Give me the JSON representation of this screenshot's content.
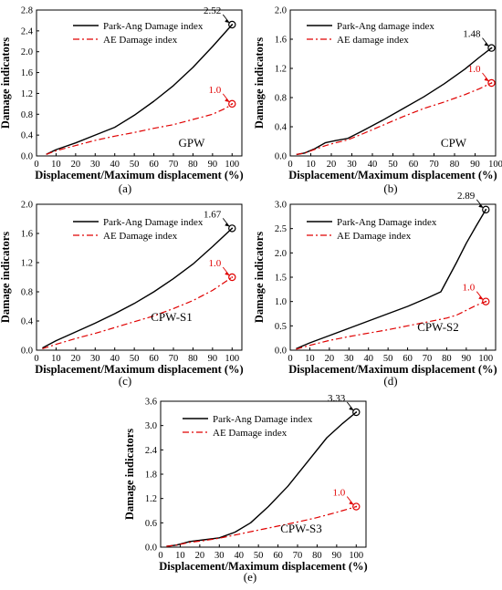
{
  "figure": {
    "colors": {
      "park_ang": "#000000",
      "ae": "#e00000",
      "axis": "#000000"
    }
  },
  "chart_data": [
    {
      "type": "line",
      "sublabel": "(a)",
      "panel_name": "GPW",
      "xlabel": "Displacement/Maximum displacement (%)",
      "ylabel": "Damage indicators",
      "xlim": [
        0,
        105
      ],
      "ylim": [
        0,
        2.8
      ],
      "xticks": [
        0,
        10,
        20,
        30,
        40,
        50,
        60,
        70,
        80,
        90,
        100
      ],
      "yticks": [
        0.0,
        0.4,
        0.8,
        1.2,
        1.6,
        2.0,
        2.4,
        2.8
      ],
      "ytick_decimals": 1,
      "grid": false,
      "legend": "top-left",
      "series": [
        {
          "name": "Park-Ang Damage index",
          "style": "solid",
          "color": "#000000",
          "x": [
            5,
            10,
            20,
            30,
            40,
            50,
            60,
            70,
            80,
            90,
            100
          ],
          "y": [
            0.03,
            0.12,
            0.25,
            0.4,
            0.55,
            0.78,
            1.05,
            1.35,
            1.7,
            2.1,
            2.52
          ]
        },
        {
          "name": "AE Damage index",
          "style": "dashdot",
          "color": "#e00000",
          "x": [
            5,
            10,
            20,
            30,
            40,
            50,
            60,
            70,
            80,
            90,
            97,
            100
          ],
          "y": [
            0.03,
            0.1,
            0.2,
            0.3,
            0.38,
            0.45,
            0.53,
            0.6,
            0.7,
            0.8,
            0.92,
            1.0
          ]
        }
      ],
      "annotations": [
        {
          "text": "2.52",
          "x": 100,
          "y": 2.52,
          "color": "#000000"
        },
        {
          "text": "1.0",
          "x": 100,
          "y": 1.0,
          "color": "#e00000"
        }
      ]
    },
    {
      "type": "line",
      "sublabel": "(b)",
      "panel_name": "CPW",
      "xlabel": "Displacement/Maximum displacement (%)",
      "ylabel": "Damage indicators",
      "xlim": [
        0,
        100
      ],
      "ylim": [
        0,
        2.0
      ],
      "xticks": [
        0,
        10,
        20,
        30,
        40,
        50,
        60,
        70,
        80,
        90,
        100
      ],
      "yticks": [
        0.0,
        0.4,
        0.8,
        1.2,
        1.6,
        2.0
      ],
      "ytick_decimals": 1,
      "grid": false,
      "legend": "top-left",
      "series": [
        {
          "name": "Park-Ang damage index",
          "style": "solid",
          "color": "#000000",
          "x": [
            3,
            7,
            12,
            17,
            22,
            28,
            35,
            45,
            55,
            65,
            75,
            85,
            92,
            98
          ],
          "y": [
            0.02,
            0.04,
            0.1,
            0.18,
            0.21,
            0.24,
            0.34,
            0.49,
            0.65,
            0.81,
            0.99,
            1.19,
            1.35,
            1.48
          ]
        },
        {
          "name": "AE damage index",
          "style": "dashdot",
          "color": "#e00000",
          "x": [
            3,
            7,
            12,
            17,
            22,
            28,
            35,
            45,
            55,
            65,
            75,
            85,
            92,
            98
          ],
          "y": [
            0.02,
            0.04,
            0.09,
            0.14,
            0.18,
            0.22,
            0.3,
            0.42,
            0.54,
            0.65,
            0.74,
            0.84,
            0.92,
            1.0
          ]
        }
      ],
      "annotations": [
        {
          "text": "1.48",
          "x": 98,
          "y": 1.48,
          "color": "#000000"
        },
        {
          "text": "1.0",
          "x": 98,
          "y": 1.0,
          "color": "#e00000"
        }
      ]
    },
    {
      "type": "line",
      "sublabel": "(c)",
      "panel_name": "CPW-S1",
      "xlabel": "Displacement/Maximum displacement (%)",
      "ylabel": "Damage indicators",
      "xlim": [
        0,
        105
      ],
      "ylim": [
        0,
        2.0
      ],
      "xticks": [
        0,
        10,
        20,
        30,
        40,
        50,
        60,
        70,
        80,
        90,
        100
      ],
      "yticks": [
        0.0,
        0.4,
        0.8,
        1.2,
        1.6,
        2.0
      ],
      "ytick_decimals": 1,
      "grid": false,
      "legend": "top-left",
      "series": [
        {
          "name": "Park-Ang Damage index",
          "style": "solid",
          "color": "#000000",
          "x": [
            3,
            10,
            20,
            30,
            40,
            50,
            60,
            70,
            80,
            90,
            100
          ],
          "y": [
            0.03,
            0.13,
            0.25,
            0.37,
            0.5,
            0.64,
            0.8,
            0.98,
            1.18,
            1.42,
            1.67
          ]
        },
        {
          "name": "AE Damage index",
          "style": "dashdot",
          "color": "#e00000",
          "x": [
            3,
            10,
            20,
            30,
            40,
            50,
            60,
            70,
            80,
            90,
            100
          ],
          "y": [
            0.02,
            0.08,
            0.16,
            0.23,
            0.31,
            0.39,
            0.47,
            0.57,
            0.68,
            0.82,
            1.0
          ]
        }
      ],
      "annotations": [
        {
          "text": "1.67",
          "x": 100,
          "y": 1.67,
          "color": "#000000"
        },
        {
          "text": "1.0",
          "x": 100,
          "y": 1.0,
          "color": "#e00000"
        }
      ]
    },
    {
      "type": "line",
      "sublabel": "(d)",
      "panel_name": "CPW-S2",
      "xlabel": "Displacement/Maximum displacement (%)",
      "ylabel": "Damage indicators",
      "xlim": [
        0,
        105
      ],
      "ylim": [
        0,
        3.0
      ],
      "xticks": [
        0,
        10,
        20,
        30,
        40,
        50,
        60,
        70,
        80,
        90,
        100
      ],
      "yticks": [
        0.0,
        0.5,
        1.0,
        1.5,
        2.0,
        2.5,
        3.0
      ],
      "ytick_decimals": 1,
      "grid": false,
      "legend": "top-left",
      "series": [
        {
          "name": "Park-Ang Damage index",
          "style": "solid",
          "color": "#000000",
          "x": [
            3,
            10,
            20,
            30,
            40,
            50,
            60,
            70,
            77,
            85,
            90,
            95,
            100
          ],
          "y": [
            0.03,
            0.15,
            0.3,
            0.45,
            0.6,
            0.75,
            0.9,
            1.07,
            1.2,
            1.8,
            2.2,
            2.55,
            2.89
          ]
        },
        {
          "name": "AE Damage index",
          "style": "dashdot",
          "color": "#e00000",
          "x": [
            3,
            10,
            20,
            30,
            40,
            50,
            60,
            70,
            80,
            85,
            90,
            95,
            100
          ],
          "y": [
            0.02,
            0.1,
            0.2,
            0.28,
            0.35,
            0.42,
            0.5,
            0.58,
            0.66,
            0.72,
            0.82,
            0.92,
            1.0
          ]
        }
      ],
      "annotations": [
        {
          "text": "2.89",
          "x": 100,
          "y": 2.89,
          "color": "#000000"
        },
        {
          "text": "1.0",
          "x": 100,
          "y": 1.0,
          "color": "#e00000"
        }
      ]
    },
    {
      "type": "line",
      "sublabel": "(e)",
      "panel_name": "CPW-S3",
      "xlabel": "Displacement/Maximum displacement (%)",
      "ylabel": "Damage indicators",
      "xlim": [
        0,
        105
      ],
      "ylim": [
        0,
        3.6
      ],
      "xticks": [
        0,
        10,
        20,
        30,
        40,
        50,
        60,
        70,
        80,
        90,
        100
      ],
      "yticks": [
        0.0,
        0.6,
        1.2,
        1.8,
        2.4,
        3.0,
        3.6
      ],
      "ytick_decimals": 1,
      "grid": false,
      "legend": "top-left",
      "series": [
        {
          "name": "Park-Ang Damage index",
          "style": "solid",
          "color": "#000000",
          "x": [
            3,
            8,
            15,
            22,
            30,
            38,
            46,
            55,
            65,
            75,
            85,
            93,
            100
          ],
          "y": [
            0.02,
            0.05,
            0.14,
            0.18,
            0.23,
            0.37,
            0.6,
            1.0,
            1.5,
            2.1,
            2.7,
            3.05,
            3.33
          ]
        },
        {
          "name": "AE Damage index",
          "style": "dashdot",
          "color": "#e00000",
          "x": [
            3,
            8,
            15,
            22,
            30,
            40,
            50,
            60,
            70,
            80,
            90,
            100
          ],
          "y": [
            0.02,
            0.05,
            0.12,
            0.16,
            0.22,
            0.32,
            0.42,
            0.52,
            0.62,
            0.73,
            0.86,
            1.0
          ]
        }
      ],
      "annotations": [
        {
          "text": "3.33",
          "x": 100,
          "y": 3.33,
          "color": "#000000"
        },
        {
          "text": "1.0",
          "x": 100,
          "y": 1.0,
          "color": "#e00000"
        }
      ]
    }
  ]
}
